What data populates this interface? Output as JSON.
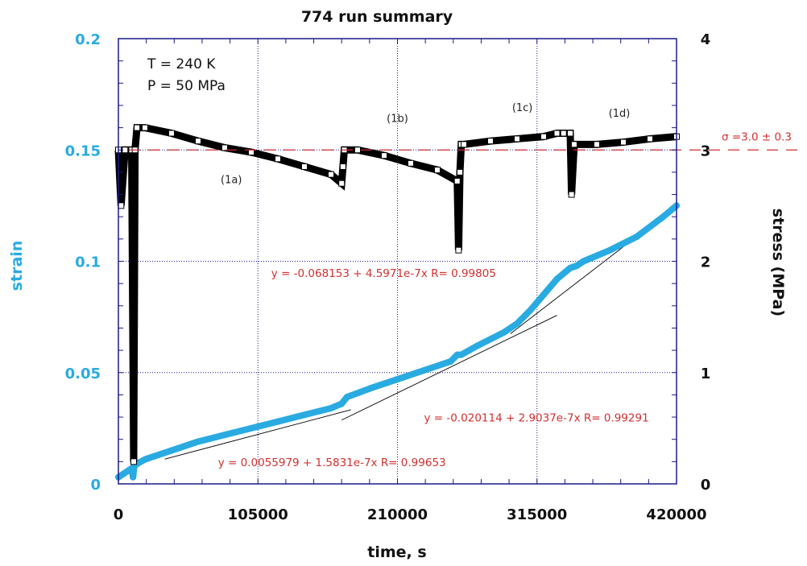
{
  "chart_data": {
    "type": "scatter",
    "title": "774 run summary",
    "xlabel": "time, s",
    "ylabel_left": "strain",
    "ylabel_right": "stress (MPa)",
    "xlim": [
      0,
      420000
    ],
    "ylim_left": [
      0,
      0.2
    ],
    "ylim_right": [
      0,
      4
    ],
    "xticks": [
      "0",
      "105000",
      "210000",
      "315000",
      "420000"
    ],
    "xtick_values": [
      0,
      105000,
      210000,
      315000,
      420000
    ],
    "yticks_left": [
      "0",
      "0.05",
      "0.1",
      "0.15",
      "0.2"
    ],
    "ytick_values_left": [
      0,
      0.05,
      0.1,
      0.15,
      0.2
    ],
    "yticks_right": [
      "0",
      "1",
      "2",
      "3",
      "4"
    ],
    "ytick_values_right": [
      0,
      1,
      2,
      3,
      4
    ],
    "grid": "dotted at major ticks",
    "annotations": {
      "conditions": [
        "T = 240 K",
        "P = 50 MPa"
      ],
      "segments": [
        {
          "label": "(1a)",
          "x": 85000,
          "stress": 2.7
        },
        {
          "label": "(1b)",
          "x": 210000,
          "stress": 3.25
        },
        {
          "label": "(1c)",
          "x": 304000,
          "stress": 3.35
        },
        {
          "label": "(1d)",
          "x": 377000,
          "stress": 3.3
        }
      ],
      "stress_target": {
        "label": "σ =3.0 ± 0.3",
        "value": 3.0,
        "color": "#d32f2f"
      }
    },
    "colors": {
      "strain": "#29abe2",
      "stress": "#000000",
      "fit": "#d32f2f",
      "axis": "#1a1a8c"
    },
    "series": [
      {
        "name": "strain",
        "axis": "left",
        "marker": "thick-line",
        "x": [
          0,
          5000,
          10000,
          11000,
          12000,
          14000,
          20000,
          40000,
          60000,
          80000,
          100000,
          120000,
          140000,
          160000,
          168000,
          172000,
          190000,
          210000,
          230000,
          250000,
          255000,
          258000,
          270000,
          290000,
          300000,
          310000,
          320000,
          330000,
          340000,
          345000,
          350000,
          370000,
          390000,
          410000,
          420000
        ],
        "y": [
          0.003,
          0.005,
          0.007,
          0.003,
          0.008,
          0.009,
          0.011,
          0.015,
          0.019,
          0.022,
          0.025,
          0.028,
          0.031,
          0.034,
          0.036,
          0.039,
          0.043,
          0.047,
          0.051,
          0.055,
          0.058,
          0.058,
          0.062,
          0.068,
          0.072,
          0.078,
          0.085,
          0.092,
          0.097,
          0.098,
          0.1,
          0.105,
          0.111,
          0.12,
          0.125
        ]
      },
      {
        "name": "stress",
        "axis": "right",
        "marker": "open-square",
        "x": [
          0,
          2000,
          5000,
          10000,
          11500,
          12500,
          14000,
          20000,
          40000,
          60000,
          80000,
          100000,
          120000,
          140000,
          160000,
          168000,
          169000,
          170000,
          180000,
          200000,
          220000,
          240000,
          255000,
          256000,
          257000,
          258000,
          260000,
          280000,
          300000,
          320000,
          330000,
          335000,
          340000,
          341000,
          343000,
          360000,
          380000,
          400000,
          420000
        ],
        "y": [
          3.0,
          2.5,
          3.0,
          3.0,
          0.2,
          3.0,
          3.2,
          3.2,
          3.15,
          3.08,
          3.02,
          2.98,
          2.92,
          2.85,
          2.78,
          2.7,
          2.85,
          3.0,
          3.0,
          2.95,
          2.88,
          2.82,
          2.72,
          2.1,
          2.8,
          3.05,
          3.05,
          3.08,
          3.1,
          3.12,
          3.15,
          3.15,
          3.15,
          2.6,
          3.05,
          3.05,
          3.07,
          3.1,
          3.12
        ]
      }
    ],
    "fits": [
      {
        "label": "y = 0.0055979 + 1.5831e-7x   R= 0.99653",
        "intercept": 0.0055979,
        "slope": 1.5831e-07,
        "R": 0.99653,
        "x_range": [
          35000,
          175000
        ],
        "label_at": [
          75000,
          0.008
        ]
      },
      {
        "label": "y = -0.020114 + 2.9037e-7x   R= 0.99291",
        "intercept": -0.020114,
        "slope": 2.9037e-07,
        "R": 0.99291,
        "x_range": [
          168000,
          330000
        ],
        "label_at": [
          230000,
          0.028
        ]
      },
      {
        "label": "y = -0.068153 + 4.5971e-7x   R= 0.99805",
        "intercept": -0.068153,
        "slope": 4.5971e-07,
        "R": 0.99805,
        "x_range": [
          295000,
          415000
        ],
        "label_at": [
          115000,
          0.093
        ]
      }
    ]
  }
}
